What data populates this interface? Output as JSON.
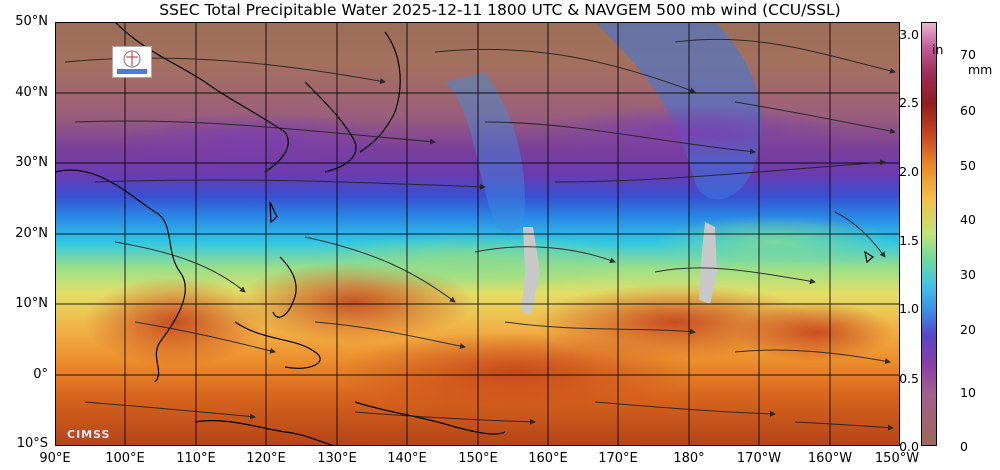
{
  "title": "SSEC Total Precipitable Water  2025-12-11 1800 UTC & NAVGEM 500 mb wind (CCU/SSL)",
  "map": {
    "lat_labels": [
      "50°N",
      "40°N",
      "30°N",
      "20°N",
      "10°N",
      "0°",
      "10°S"
    ],
    "lon_labels": [
      "90°E",
      "100°E",
      "110°E",
      "120°E",
      "130°E",
      "140°E",
      "150°E",
      "160°E",
      "170°E",
      "180°",
      "170°W",
      "160°W",
      "150°W"
    ],
    "watermark": "CIMSS"
  },
  "colorbar": {
    "inch_unit": "in",
    "mm_unit": "mm",
    "inch_labels": [
      "3.0",
      "2.5",
      "2.0",
      "1.5",
      "1.0",
      "0.5",
      "0.0"
    ],
    "mm_labels": [
      "70",
      "60",
      "50",
      "40",
      "30",
      "20",
      "10",
      "0"
    ]
  }
}
